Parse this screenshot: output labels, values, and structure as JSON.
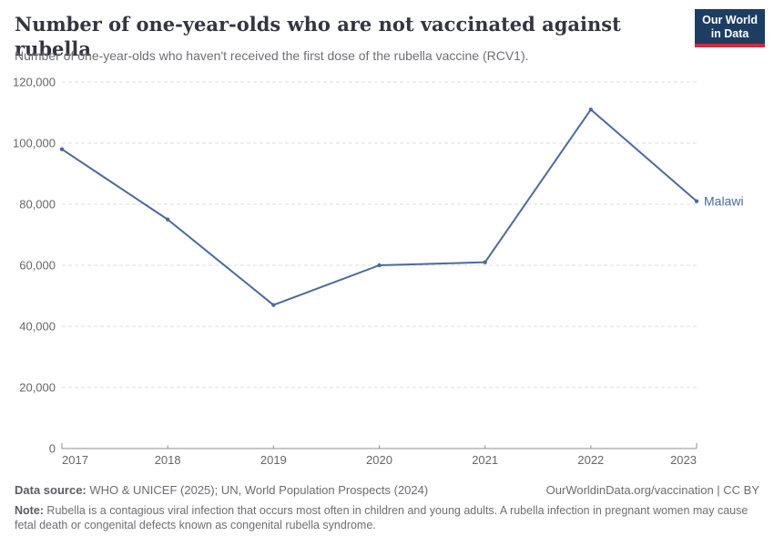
{
  "header": {
    "logo": {
      "line1": "Our World",
      "line2": "in Data"
    }
  },
  "chart_data": {
    "type": "line",
    "title": "Number of one-year-olds who are not vaccinated against rubella",
    "subtitle": "Number of one-year-olds who haven't received the first dose of the rubella vaccine (RCV1).",
    "x": [
      2017,
      2018,
      2019,
      2020,
      2021,
      2022,
      2023
    ],
    "series": [
      {
        "name": "Malawi",
        "color": "#4C6A9C",
        "values": [
          98000,
          75000,
          47000,
          60000,
          61000,
          111000,
          81000
        ]
      }
    ],
    "ylim": [
      0,
      120000
    ],
    "yticks": [
      0,
      20000,
      40000,
      60000,
      80000,
      100000,
      120000
    ],
    "ytick_labels": [
      "0",
      "20,000",
      "40,000",
      "60,000",
      "80,000",
      "100,000",
      "120,000"
    ],
    "xlabel": "",
    "ylabel": "",
    "grid": "horizontal-dashed",
    "legend_position": "end-of-line"
  },
  "colors": {
    "line": "#4C6A9C",
    "grid": "#dddddd",
    "axis": "#8f8f8f",
    "tick_text": "#67676d",
    "title_text": "#333640",
    "logo_bg": "#1d3d63",
    "logo_red": "#cc2b41"
  },
  "footer": {
    "datasource_label": "Data source:",
    "datasource_text": " WHO & UNICEF (2025); UN, World Population Prospects (2024)",
    "link_text": "OurWorldinData.org/vaccination | CC BY",
    "note_label": "Note:",
    "note_text": " Rubella is a contagious viral infection that occurs most often in children and young adults. A rubella infection in pregnant women may cause fetal death or congenital defects known as congenital rubella syndrome."
  }
}
